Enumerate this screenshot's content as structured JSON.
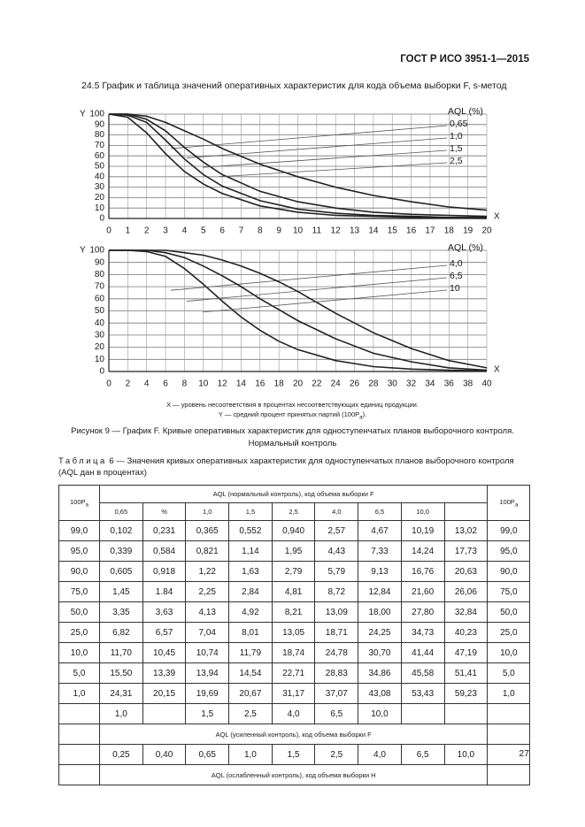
{
  "header": {
    "standard": "ГОСТ Р ИСО 3951-1—2015"
  },
  "section_title": "24.5 График и таблица значений оперативных характеристик для кода объема выборки F, s-метод",
  "chart_data": [
    {
      "type": "line",
      "x_label": "X",
      "y_label": "Y",
      "legend_title": "AQL (%)",
      "grid": true,
      "x": [
        0,
        1,
        2,
        3,
        4,
        5,
        6,
        8,
        10,
        12,
        14,
        16,
        18,
        20
      ],
      "series": [
        {
          "name": "0,65",
          "color": "#222222",
          "values": [
            100,
            97,
            82,
            62,
            45,
            33,
            24,
            12,
            6,
            3,
            2,
            1,
            0.5,
            0
          ]
        },
        {
          "name": "1,0",
          "color": "#222222",
          "values": [
            100,
            99,
            92,
            75,
            57,
            42,
            31,
            17,
            9,
            5,
            3,
            2,
            1,
            1
          ]
        },
        {
          "name": "1,5",
          "color": "#222222",
          "values": [
            100,
            100,
            95,
            84,
            68,
            54,
            42,
            26,
            16,
            10,
            6,
            4,
            3,
            2
          ]
        },
        {
          "name": "2,5",
          "color": "#222222",
          "values": [
            100,
            100,
            98,
            92,
            84,
            76,
            67,
            52,
            40,
            30,
            22,
            16,
            11,
            8
          ]
        }
      ],
      "xlim": [
        0,
        20
      ],
      "xticks": [
        0,
        1,
        2,
        3,
        4,
        5,
        6,
        7,
        8,
        9,
        10,
        11,
        12,
        13,
        14,
        15,
        16,
        17,
        18,
        19,
        20
      ],
      "ylim": [
        0,
        100
      ],
      "yticks": [
        0,
        10,
        20,
        30,
        40,
        50,
        60,
        70,
        80,
        90,
        100
      ]
    },
    {
      "type": "line",
      "x_label": "X",
      "y_label": "Y",
      "legend_title": "AQL (%)",
      "grid": true,
      "x": [
        0,
        2,
        4,
        6,
        8,
        10,
        12,
        14,
        16,
        18,
        20,
        24,
        28,
        32,
        36,
        40
      ],
      "series": [
        {
          "name": "4,0",
          "color": "#222222",
          "values": [
            100,
            100,
            99,
            95,
            85,
            72,
            58,
            45,
            34,
            25,
            18,
            9,
            4,
            2,
            1,
            0.5
          ]
        },
        {
          "name": "6,5",
          "color": "#222222",
          "values": [
            100,
            100,
            100,
            98,
            94,
            87,
            79,
            70,
            60,
            51,
            42,
            27,
            15,
            8,
            3,
            1
          ]
        },
        {
          "name": "10",
          "color": "#222222",
          "values": [
            100,
            100,
            100,
            100,
            98,
            96,
            92,
            87,
            81,
            74,
            66,
            48,
            32,
            19,
            9,
            3
          ]
        }
      ],
      "xlim": [
        0,
        40
      ],
      "xticks": [
        0,
        2,
        4,
        6,
        8,
        10,
        12,
        14,
        16,
        18,
        20,
        22,
        24,
        26,
        28,
        30,
        32,
        34,
        36,
        38,
        40
      ],
      "ylim": [
        0,
        100
      ],
      "yticks": [
        0,
        10,
        20,
        30,
        40,
        50,
        60,
        70,
        80,
        90,
        100
      ]
    }
  ],
  "notes": {
    "x": "X — уровень несоответствия в процентах несоответствующих единиц продукции.",
    "y": {
      "before": "Y — средний процент принятых партий (100P",
      "sub": "a",
      "after": ")."
    }
  },
  "figure_caption": {
    "line1": "Рисунок 9 — График F. Кривые оперативных характеристик для одноступенчатых планов выборочного контроля.",
    "line2": "Нормальный контроль"
  },
  "table": {
    "label": "Таблица",
    "title": "6 — Значения кривых оперативных характеристик для одноступенчатых планов выборочного контроля",
    "subtitle": "(AQL дан в процентах)",
    "corner": {
      "main": "100P",
      "sub": "a"
    },
    "normal_header": "AQL (нормальный контроль), код объема выборки F",
    "normal_aql": [
      "0,65",
      "%",
      "1,0",
      "1,5",
      "2,5",
      "4,0",
      "6,5",
      "10,0",
      null
    ],
    "rows": [
      [
        "99,0",
        "0,102",
        "0,231",
        "0,365",
        "0,552",
        "0,940",
        "2,57",
        "4,67",
        "10,19",
        "13,02",
        "99,0"
      ],
      [
        "95,0",
        "0,339",
        "0,584",
        "0,821",
        "1,14",
        "1,95",
        "4,43",
        "7,33",
        "14,24",
        "17,73",
        "95,0"
      ],
      [
        "90,0",
        "0,605",
        "0,918",
        "1,22",
        "1,63",
        "2,79",
        "5,79",
        "9,13",
        "16,76",
        "20,63",
        "90,0"
      ],
      [
        "75,0",
        "1,45",
        "1.84",
        "2,25",
        "2,84",
        "4,81",
        "8,72",
        "12,84",
        "21,60",
        "26,06",
        "75,0"
      ],
      [
        "50,0",
        "3,35",
        "3,63",
        "4,13",
        "4,92",
        "8,21",
        "13,09",
        "18,00",
        "27,80",
        "32,84",
        "50,0"
      ],
      [
        "25,0",
        "6,82",
        "6,57",
        "7,04",
        "8,01",
        "13,05",
        "18,71",
        "24,25",
        "34,73",
        "40,23",
        "25,0"
      ],
      [
        "10,0",
        "11,70",
        "10,45",
        "10,74",
        "11,79",
        "18,74",
        "24,78",
        "30,70",
        "41,44",
        "47,19",
        "10,0"
      ],
      [
        "5,0",
        "15,50",
        "13,39",
        "13,94",
        "14,54",
        "22,71",
        "28,83",
        "34,86",
        "45,58",
        "51,41",
        "5,0"
      ],
      [
        "1,0",
        "24,31",
        "20,15",
        "19,69",
        "20,67",
        "31,17",
        "37,07",
        "43,08",
        "53,43",
        "59,23",
        "1,0"
      ]
    ],
    "tightened_aql": [
      "1,0",
      null,
      "1,5",
      "2,5",
      "4,0",
      "6,5",
      "10,0",
      null,
      null
    ],
    "tightened_header": "AQL (усиленный контроль), код объема выборки F",
    "reduced_aql": [
      "0,25",
      "0,40",
      "0,65",
      "1,0",
      "1,5",
      "2,5",
      "4,0",
      "6,5",
      "10,0"
    ],
    "reduced_header": "AQL (ослабленный контроль), код объема выборки H"
  },
  "page_number": "27"
}
